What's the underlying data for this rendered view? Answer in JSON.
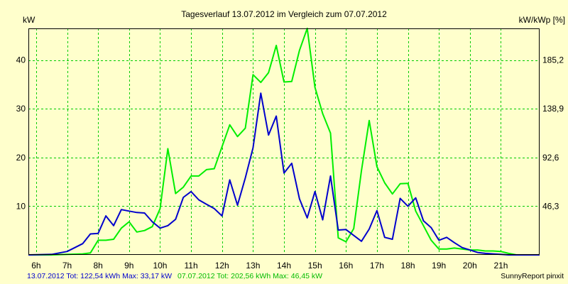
{
  "chart_data": {
    "type": "line",
    "title": "Tagesverlauf 13.07.2012 im Vergleich zum 07.07.2012",
    "ylabel_left": "kW",
    "ylabel_right": "kW/kWp [%]",
    "xlim": [
      5.75,
      22.25
    ],
    "ylim": [
      0,
      46.5
    ],
    "x_ticks": [
      {
        "x": 6,
        "label": "6h"
      },
      {
        "x": 7,
        "label": "7h"
      },
      {
        "x": 8,
        "label": "8h"
      },
      {
        "x": 9,
        "label": "9h"
      },
      {
        "x": 10,
        "label": "10h"
      },
      {
        "x": 11,
        "label": "11h"
      },
      {
        "x": 12,
        "label": "12h"
      },
      {
        "x": 13,
        "label": "13h"
      },
      {
        "x": 14,
        "label": "14h"
      },
      {
        "x": 15,
        "label": "15h"
      },
      {
        "x": 16,
        "label": "16h"
      },
      {
        "x": 17,
        "label": "17h"
      },
      {
        "x": 18,
        "label": "18h"
      },
      {
        "x": 19,
        "label": "19h"
      },
      {
        "x": 20,
        "label": "20h"
      },
      {
        "x": 21,
        "label": "21h"
      }
    ],
    "y_ticks_left": [
      {
        "value": 10,
        "label": "10"
      },
      {
        "value": 20,
        "label": "20"
      },
      {
        "value": 30,
        "label": "30"
      },
      {
        "value": 40,
        "label": "40"
      }
    ],
    "y_ticks_right": [
      {
        "value": 10,
        "label": "46,3"
      },
      {
        "value": 20,
        "label": "92,6"
      },
      {
        "value": 30,
        "label": "138,9"
      },
      {
        "value": 40,
        "label": "185,2"
      }
    ],
    "grid": true,
    "series": [
      {
        "name": "07.07.2012",
        "color": "#00ee00",
        "x": [
          5.75,
          6.5,
          7.0,
          7.5,
          7.75,
          8.0,
          8.25,
          8.5,
          8.75,
          9.0,
          9.25,
          9.5,
          9.75,
          10.0,
          10.25,
          10.5,
          10.75,
          11.0,
          11.25,
          11.5,
          11.75,
          12.0,
          12.25,
          12.5,
          12.75,
          13.0,
          13.25,
          13.5,
          13.75,
          14.0,
          14.25,
          14.5,
          14.75,
          15.0,
          15.25,
          15.5,
          15.75,
          16.0,
          16.25,
          16.5,
          16.75,
          17.0,
          17.25,
          17.5,
          17.75,
          18.0,
          18.25,
          18.5,
          18.75,
          19.0,
          19.25,
          19.5,
          19.75,
          20.0,
          20.25,
          20.5,
          20.75,
          21.0,
          21.25,
          21.5,
          22.25
        ],
        "values": [
          0.0,
          0.0,
          0.1,
          0.2,
          0.4,
          3.0,
          3.0,
          3.2,
          5.5,
          6.8,
          4.7,
          5.0,
          5.8,
          9.5,
          21.8,
          12.6,
          13.9,
          16.2,
          16.2,
          17.5,
          17.7,
          22.2,
          26.7,
          24.3,
          26.0,
          37.0,
          35.4,
          37.4,
          43.0,
          35.5,
          35.6,
          42.0,
          46.5,
          34.4,
          29.0,
          25.0,
          3.5,
          2.7,
          5.4,
          17.3,
          27.6,
          18.1,
          14.8,
          12.5,
          14.6,
          14.7,
          9.0,
          6.0,
          3.0,
          1.2,
          1.2,
          1.4,
          1.2,
          1.0,
          1.0,
          0.8,
          0.8,
          0.7,
          0.3,
          0.0,
          0.0
        ]
      },
      {
        "name": "13.07.2012",
        "color": "#0000cc",
        "x": [
          5.75,
          6.5,
          7.0,
          7.25,
          7.5,
          7.75,
          8.0,
          8.25,
          8.5,
          8.75,
          9.0,
          9.25,
          9.5,
          9.75,
          10.0,
          10.25,
          10.5,
          10.75,
          11.0,
          11.25,
          11.5,
          11.75,
          12.0,
          12.25,
          12.5,
          12.75,
          13.0,
          13.25,
          13.5,
          13.75,
          14.0,
          14.25,
          14.5,
          14.75,
          15.0,
          15.25,
          15.5,
          15.75,
          16.0,
          16.25,
          16.5,
          16.75,
          17.0,
          17.25,
          17.5,
          17.75,
          18.0,
          18.25,
          18.5,
          18.75,
          19.0,
          19.25,
          19.5,
          19.75,
          20.0,
          20.25,
          20.5,
          20.75,
          21.0,
          21.25,
          22.25
        ],
        "values": [
          0.0,
          0.1,
          0.7,
          1.5,
          2.3,
          4.3,
          4.4,
          8.0,
          6.0,
          9.3,
          9.0,
          8.7,
          8.6,
          6.8,
          5.5,
          6.0,
          7.3,
          11.8,
          13.0,
          11.3,
          10.4,
          9.5,
          8.0,
          15.4,
          10.2,
          15.8,
          22.0,
          33.2,
          24.6,
          28.5,
          16.8,
          18.8,
          11.5,
          7.6,
          13.0,
          7.2,
          16.2,
          5.1,
          5.2,
          4.0,
          2.8,
          5.3,
          9.1,
          3.6,
          3.2,
          11.6,
          10.0,
          11.7,
          7.0,
          5.6,
          3.0,
          3.6,
          2.5,
          1.5,
          1.0,
          0.5,
          0.3,
          0.2,
          0.1,
          0.0,
          0.0
        ]
      }
    ]
  },
  "footer": {
    "legend_left": "13.07.2012 Tot: 122,54 kWh Max: 33,17 kW",
    "legend_right": "07.07.2012 Tot: 202,56 kWh Max: 46,45 kW",
    "credit": "SunnyReport pinxit"
  },
  "colors": {
    "background": "#ffffcc",
    "grid": "#00cc00",
    "legend_blue": "#0000cc",
    "legend_green": "#00bb00"
  }
}
